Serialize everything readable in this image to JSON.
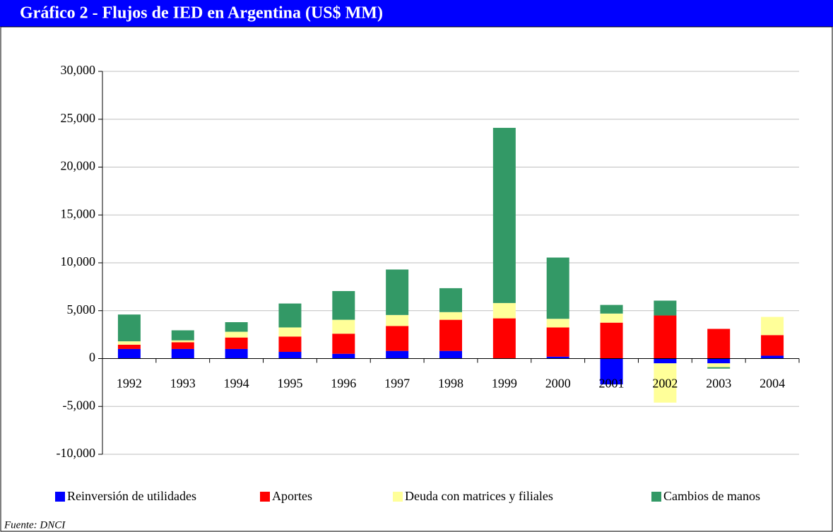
{
  "chart_data": {
    "type": "stacked_bar",
    "title": "Gráfico 2 - Flujos de IED en Argentina (US$ MM)",
    "source": "Fuente: DNCI",
    "categories": [
      "1992",
      "1993",
      "1994",
      "1995",
      "1996",
      "1997",
      "1998",
      "1999",
      "2000",
      "2001",
      "2002",
      "2003",
      "2004"
    ],
    "series": [
      {
        "name": "Reinversión de utilidades",
        "color": "#0000ff",
        "values": [
          1000,
          1000,
          1000,
          700,
          500,
          800,
          800,
          0,
          200,
          -2700,
          -500,
          -500,
          300
        ]
      },
      {
        "name": "Aportes",
        "color": "#ff0000",
        "values": [
          450,
          700,
          1200,
          1600,
          2100,
          2600,
          3250,
          4200,
          3050,
          3750,
          4500,
          3100,
          2150
        ]
      },
      {
        "name": "Deuda con matrices y filiales",
        "color": "#ffff99",
        "values": [
          350,
          200,
          600,
          950,
          1450,
          1150,
          800,
          1600,
          900,
          950,
          -4100,
          -400,
          1900
        ]
      },
      {
        "name": "Cambios de manos",
        "color": "#339966",
        "values": [
          2800,
          1050,
          1000,
          2500,
          3000,
          4750,
          2500,
          18300,
          6400,
          900,
          1550,
          -150,
          0
        ]
      }
    ],
    "ylim": [
      -10000,
      30000
    ],
    "yticks": [
      {
        "value": -10000,
        "label": "-10,000"
      },
      {
        "value": -5000,
        "label": "-5,000"
      },
      0,
      {
        "value": 5000,
        "label": "5,000"
      },
      {
        "value": 10000,
        "label": "10,000"
      },
      {
        "value": 15000,
        "label": "15,000"
      },
      {
        "value": 20000,
        "label": "20,000"
      },
      {
        "value": 25000,
        "label": "25,000"
      },
      {
        "value": 30000,
        "label": "30,000"
      }
    ],
    "grid": true,
    "legend": "bottom"
  }
}
